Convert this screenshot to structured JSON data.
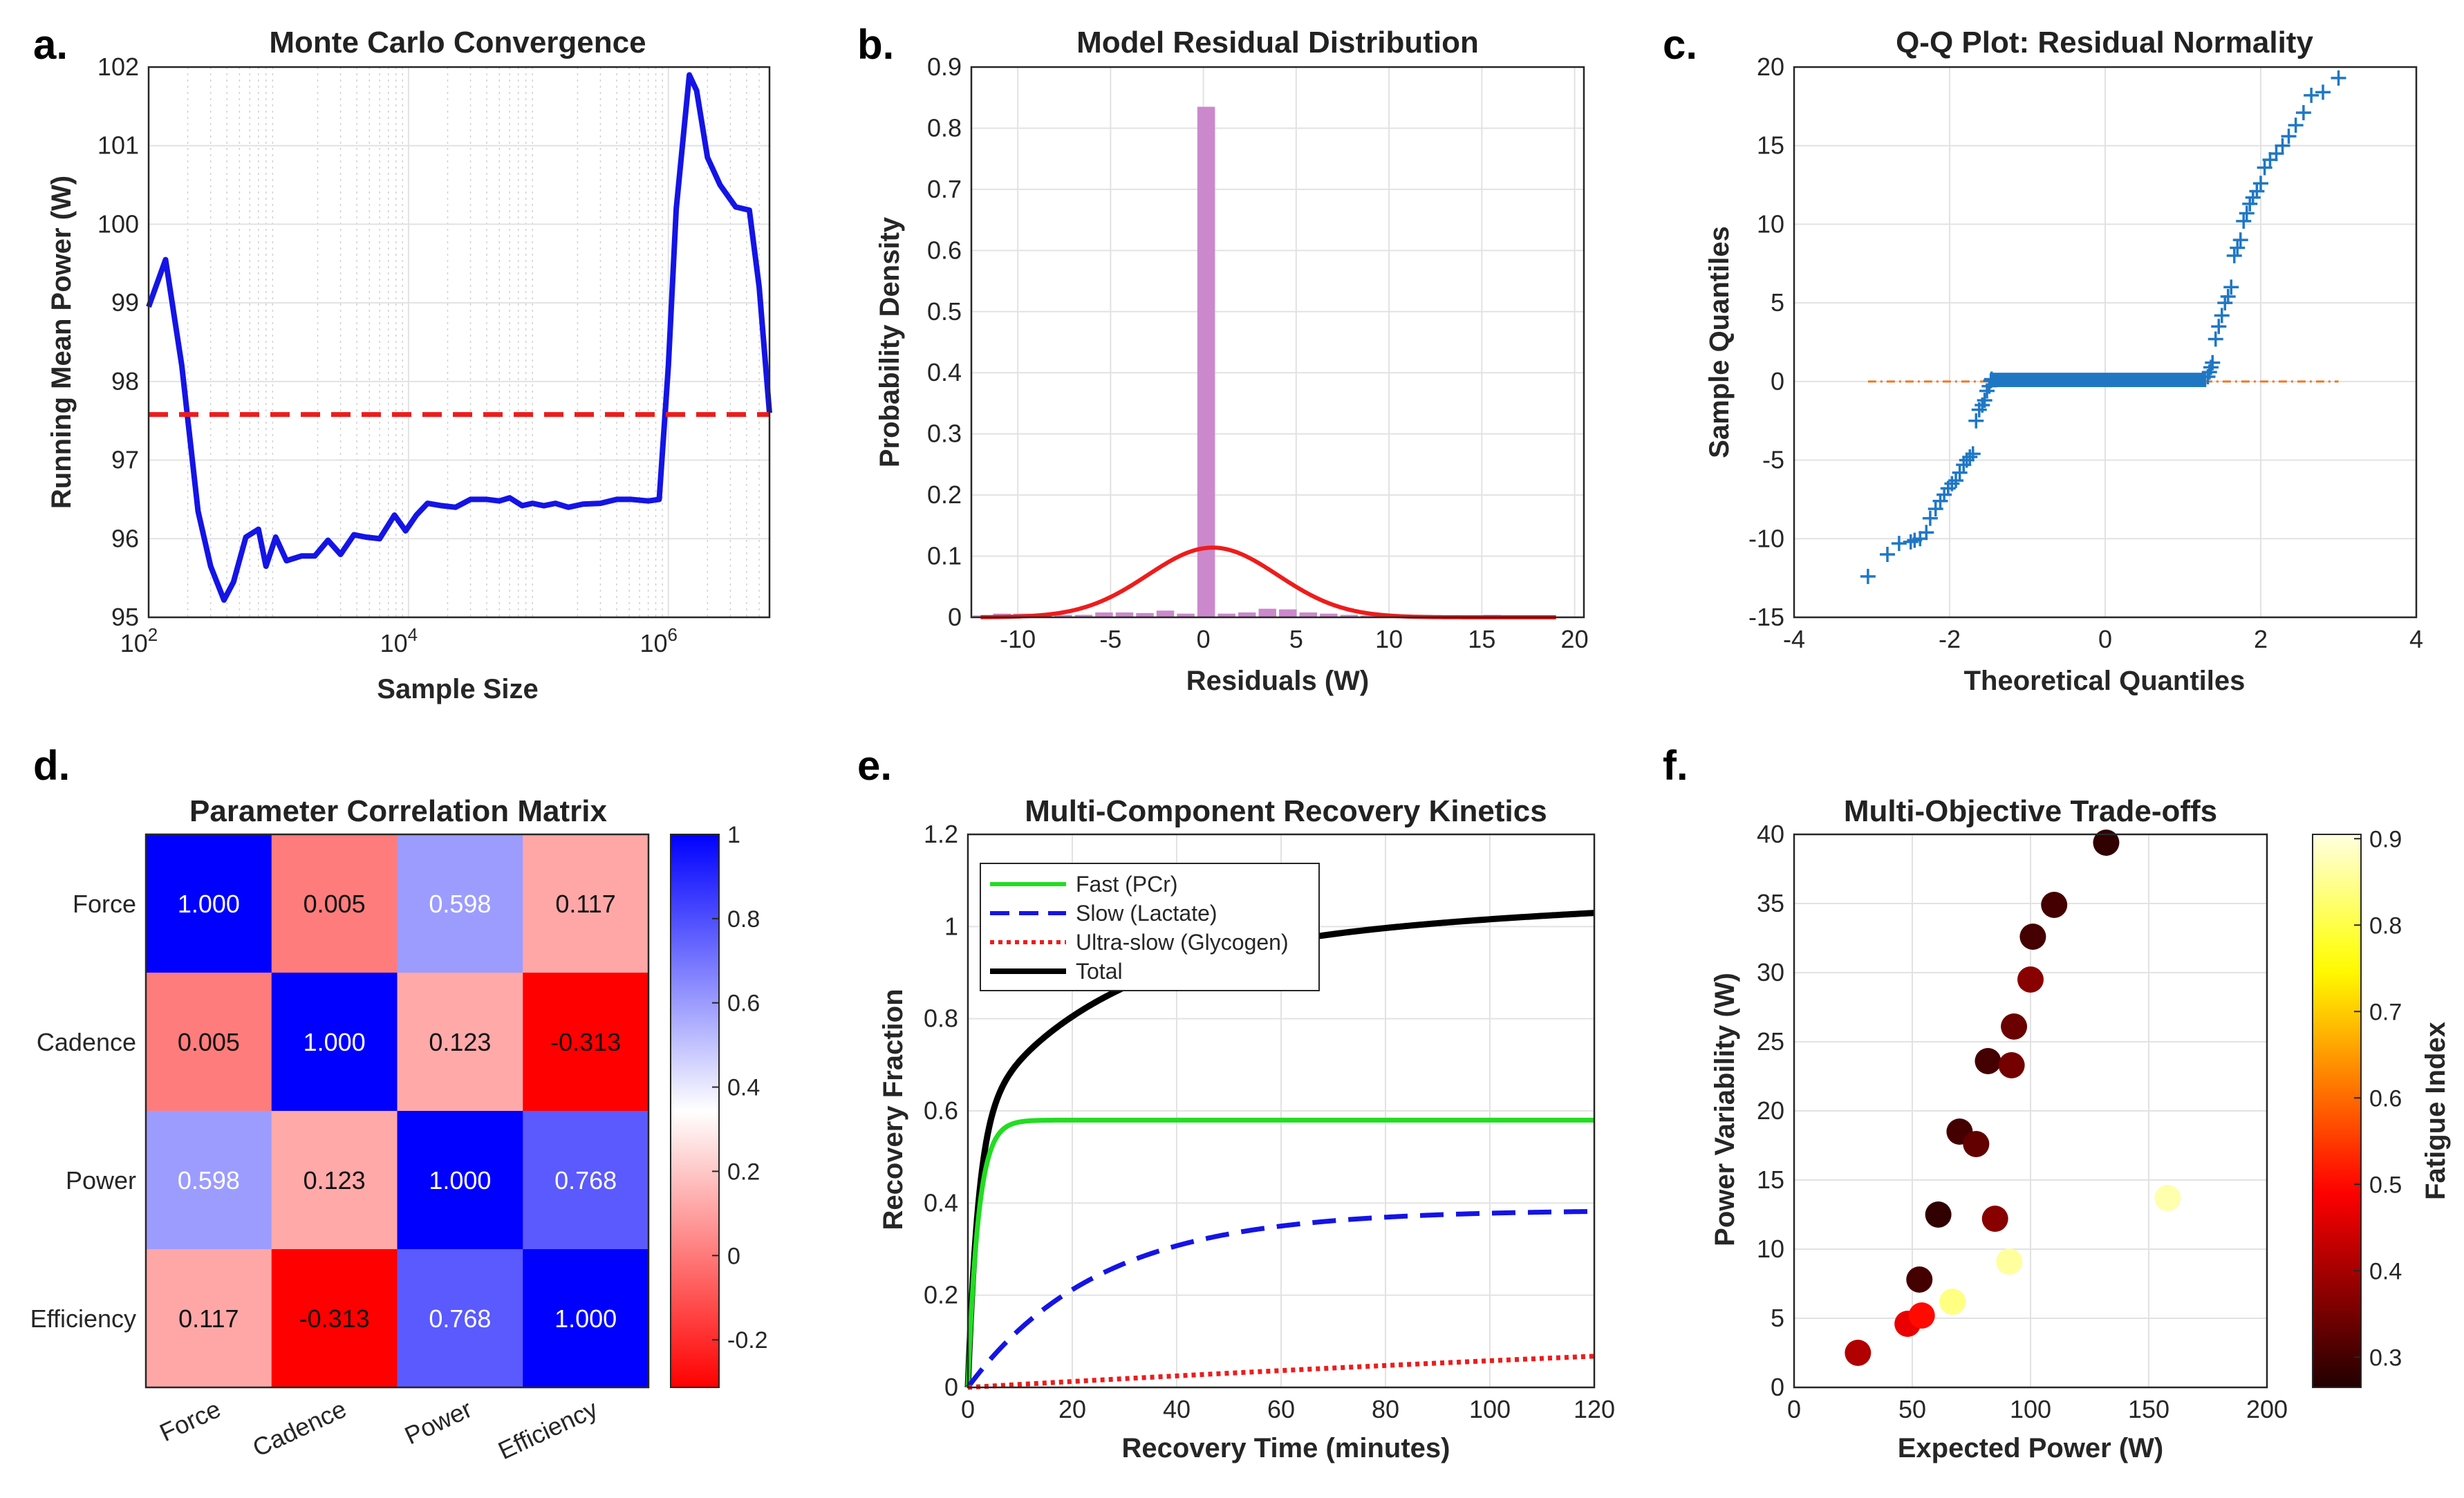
{
  "panel_labels": [
    "a.",
    "b.",
    "c.",
    "d.",
    "e.",
    "f."
  ],
  "chart_data": [
    {
      "id": "a",
      "type": "line",
      "title": "Monte Carlo Convergence",
      "xlabel": "Sample Size",
      "ylabel": "Running Mean Power (W)",
      "xscale": "log",
      "xlim": [
        100,
        6000000
      ],
      "ylim": [
        95,
        102
      ],
      "xticks": [
        {
          "value": 100,
          "base": "10",
          "exp": "2"
        },
        {
          "value": 10000,
          "base": "10",
          "exp": "4"
        },
        {
          "value": 1000000,
          "base": "10",
          "exp": "6"
        }
      ],
      "yticks": [
        95,
        96,
        97,
        98,
        99,
        100,
        101,
        102
      ],
      "series": [
        {
          "name": "Running mean",
          "color": "#1414e6",
          "x": [
            100,
            135,
            180,
            240,
            300,
            380,
            450,
            560,
            700,
            800,
            950,
            1150,
            1500,
            1900,
            2400,
            3000,
            3800,
            4700,
            6000,
            7800,
            9500,
            11500,
            14000,
            18000,
            23000,
            30000,
            40000,
            50000,
            60000,
            75000,
            90000,
            110000,
            135000,
            170000,
            220000,
            300000,
            400000,
            520000,
            700000,
            850000,
            1000000,
            1150000,
            1300000,
            1450000,
            1650000,
            2000000,
            2500000,
            3300000,
            4200000,
            5000000,
            6000000
          ],
          "y": [
            98.95,
            99.55,
            98.2,
            96.35,
            95.65,
            95.22,
            95.45,
            96.02,
            96.12,
            95.65,
            96.02,
            95.72,
            95.78,
            95.78,
            95.98,
            95.8,
            96.05,
            96.02,
            96.0,
            96.3,
            96.1,
            96.3,
            96.45,
            96.42,
            96.4,
            96.5,
            96.5,
            96.48,
            96.52,
            96.42,
            96.45,
            96.42,
            96.45,
            96.4,
            96.44,
            96.45,
            96.5,
            96.5,
            96.48,
            96.5,
            98.2,
            100.2,
            101.1,
            101.9,
            101.7,
            100.85,
            100.5,
            100.22,
            100.18,
            99.2,
            97.6
          ]
        }
      ],
      "reference_line": {
        "y": 97.58,
        "style": "dashed",
        "color": "#ee1c1c"
      },
      "grid": true
    },
    {
      "id": "b",
      "type": "histogram",
      "title": "Model Residual Distribution",
      "xlabel": "Residuals (W)",
      "ylabel": "Probability Density",
      "xlim": [
        -12.5,
        20.5
      ],
      "ylim": [
        0,
        0.9
      ],
      "xticks": [
        -10,
        -5,
        0,
        5,
        10,
        15,
        20
      ],
      "yticks": [
        0,
        0.1,
        0.2,
        0.3,
        0.4,
        0.5,
        0.6,
        0.7,
        0.8,
        0.9
      ],
      "bins": {
        "color": "#cc88cc",
        "edges": [
          -12.5,
          -11.4,
          -10.3,
          -9.2,
          -8.1,
          -7.0,
          -5.9,
          -4.8,
          -3.7,
          -2.6,
          -1.5,
          -0.4,
          0.7,
          1.8,
          2.9,
          4.0,
          5.1,
          6.2,
          7.3,
          8.4,
          9.5,
          10.6,
          11.7,
          12.8,
          13.9,
          15.0,
          16.1,
          17.2,
          18.3,
          19.4
        ],
        "density": [
          0.003,
          0.006,
          0.006,
          0.004,
          0.004,
          0.004,
          0.008,
          0.008,
          0.007,
          0.011,
          0.006,
          0.835,
          0.006,
          0.008,
          0.014,
          0.013,
          0.008,
          0.006,
          0.004,
          0.003,
          0.004,
          0.003,
          0.003,
          0.002,
          0.002,
          0.004,
          0.002,
          0.001,
          0.001
        ]
      },
      "fit": {
        "name": "Normal fit",
        "color": "#ee1c1c",
        "mean": 0.5,
        "std": 3.5,
        "x_range": [
          -12,
          19
        ]
      },
      "grid": true
    },
    {
      "id": "c",
      "type": "scatter",
      "title": "Q-Q Plot: Residual Normality",
      "xlabel": "Theoretical Quantiles",
      "ylabel": "Sample Quantiles",
      "xlim": [
        -4,
        4
      ],
      "ylim": [
        -15,
        20
      ],
      "xticks": [
        -4,
        -2,
        0,
        2,
        4
      ],
      "yticks": [
        -15,
        -10,
        -5,
        0,
        5,
        10,
        15,
        20
      ],
      "points": {
        "marker": "+",
        "color": "#1f77c4",
        "x": [
          -3.05,
          -2.8,
          -2.65,
          -2.5,
          -2.45,
          -2.38,
          -2.3,
          -2.25,
          -2.18,
          -2.12,
          -2.07,
          -2.02,
          -1.97,
          -1.92,
          -1.87,
          -1.82,
          -1.78,
          -1.74,
          -1.7,
          -1.66,
          -1.62,
          -1.58,
          -1.55,
          -1.52,
          -1.49,
          -1.47,
          -1.46,
          1.32,
          1.34,
          1.36,
          1.38,
          1.42,
          1.46,
          1.5,
          1.54,
          1.58,
          1.62,
          1.66,
          1.7,
          1.74,
          1.78,
          1.82,
          1.86,
          1.9,
          1.95,
          2.0,
          2.05,
          2.12,
          2.2,
          2.28,
          2.36,
          2.45,
          2.55,
          2.65,
          2.8,
          3.0
        ],
        "y": [
          -12.4,
          -11.0,
          -10.3,
          -10.2,
          -10.1,
          -10.0,
          -9.6,
          -8.7,
          -8.1,
          -7.6,
          -7.2,
          -6.8,
          -6.5,
          -6.3,
          -5.8,
          -5.3,
          -5.0,
          -4.8,
          -4.6,
          -2.5,
          -1.8,
          -1.5,
          -1.2,
          -0.6,
          -0.3,
          0.05,
          0.15,
          0.3,
          0.6,
          0.9,
          1.2,
          2.7,
          3.5,
          4.2,
          5.0,
          5.4,
          6.0,
          8.0,
          8.5,
          9.0,
          10.2,
          10.7,
          11.3,
          11.7,
          12.1,
          12.6,
          13.6,
          14.1,
          14.5,
          15.0,
          15.6,
          16.3,
          17.1,
          18.2,
          18.4,
          19.3
        ],
        "flat_segment": {
          "x_from": -1.45,
          "x_to": 1.3,
          "y_from": -0.05,
          "y_to": 0.25
        }
      },
      "reference_line": {
        "x": [
          -3.05,
          3.0
        ],
        "y": [
          0,
          0
        ],
        "style": "dash-dot",
        "color": "#ee7722"
      },
      "grid": true
    },
    {
      "id": "d",
      "type": "heatmap",
      "title": "Parameter Correlation Matrix",
      "rows": [
        "Force",
        "Cadence",
        "Power",
        "Efficiency"
      ],
      "cols": [
        "Force",
        "Cadence",
        "Power",
        "Efficiency"
      ],
      "values": [
        [
          1.0,
          0.005,
          0.598,
          0.117
        ],
        [
          0.005,
          1.0,
          0.123,
          -0.313
        ],
        [
          0.598,
          0.123,
          1.0,
          0.768
        ],
        [
          0.117,
          -0.313,
          0.768,
          1.0
        ]
      ],
      "labels": [
        [
          "1.000",
          "0.005",
          "0.598",
          "0.117"
        ],
        [
          "0.005",
          "1.000",
          "0.123",
          "-0.313"
        ],
        [
          "0.598",
          "0.123",
          "1.000",
          "0.768"
        ],
        [
          "0.117",
          "-0.313",
          "0.768",
          "1.000"
        ]
      ],
      "colorbar": {
        "range": [
          -0.313,
          1.0
        ],
        "ticks": [
          -0.2,
          0,
          0.2,
          0.4,
          0.6,
          0.8,
          1
        ],
        "tick_labels": [
          "-0.2",
          "0",
          "0.2",
          "0.4",
          "0.6",
          "0.8",
          "1"
        ],
        "colors": {
          "low": "#ff0000",
          "mid": "#ffffff",
          "high": "#0000ff"
        }
      }
    },
    {
      "id": "e",
      "type": "line",
      "title": "Multi-Component Recovery Kinetics",
      "xlabel": "Recovery Time (minutes)",
      "ylabel": "Recovery Fraction",
      "xlim": [
        0,
        120
      ],
      "ylim": [
        0,
        1.2
      ],
      "xticks": [
        0,
        20,
        40,
        60,
        80,
        100,
        120
      ],
      "yticks": [
        0,
        0.2,
        0.4,
        0.6,
        0.8,
        1,
        1.2
      ],
      "ytick_labels": [
        "0",
        "0.2",
        "0.4",
        "0.6",
        "0.8",
        "1",
        "1.2"
      ],
      "series": [
        {
          "name": "Fast (PCr)",
          "color": "#22dd22",
          "style": "solid",
          "amplitude": 0.58,
          "tau": 2.0
        },
        {
          "name": "Slow (Lactate)",
          "color": "#1414e6",
          "style": "dashed",
          "amplitude": 0.385,
          "tau": 25.0
        },
        {
          "name": "Ultra-slow (Glycogen)",
          "color": "#ee1c1c",
          "style": "dotted",
          "amplitude": 0.25,
          "tau": 380.0
        },
        {
          "name": "Total",
          "color": "#000000",
          "style": "solid",
          "sum_of": [
            "Fast (PCr)",
            "Slow (Lactate)",
            "Ultra-slow (Glycogen)"
          ]
        }
      ],
      "legend": "top-left",
      "grid": true
    },
    {
      "id": "f",
      "type": "scatter",
      "title": "Multi-Objective Trade-offs",
      "xlabel": "Expected Power (W)",
      "ylabel": "Power Variability (W)",
      "xlim": [
        0,
        200
      ],
      "ylim": [
        0,
        40
      ],
      "xticks": [
        0,
        50,
        100,
        150,
        200
      ],
      "yticks": [
        0,
        5,
        10,
        15,
        20,
        25,
        30,
        35,
        40
      ],
      "points": [
        {
          "x": 27,
          "y": 2.5,
          "c": 0.41
        },
        {
          "x": 48,
          "y": 4.6,
          "c": 0.47
        },
        {
          "x": 54,
          "y": 5.2,
          "c": 0.5
        },
        {
          "x": 53,
          "y": 7.8,
          "c": 0.3
        },
        {
          "x": 67,
          "y": 6.2,
          "c": 0.84
        },
        {
          "x": 61,
          "y": 12.5,
          "c": 0.28
        },
        {
          "x": 91,
          "y": 9.1,
          "c": 0.86
        },
        {
          "x": 85,
          "y": 12.2,
          "c": 0.37
        },
        {
          "x": 70,
          "y": 18.5,
          "c": 0.3
        },
        {
          "x": 77,
          "y": 17.6,
          "c": 0.33
        },
        {
          "x": 82,
          "y": 23.6,
          "c": 0.3
        },
        {
          "x": 92,
          "y": 23.3,
          "c": 0.35
        },
        {
          "x": 93,
          "y": 26.1,
          "c": 0.34
        },
        {
          "x": 100,
          "y": 29.5,
          "c": 0.37
        },
        {
          "x": 101,
          "y": 32.6,
          "c": 0.3
        },
        {
          "x": 110,
          "y": 34.9,
          "c": 0.3
        },
        {
          "x": 132,
          "y": 39.4,
          "c": 0.28
        },
        {
          "x": 158,
          "y": 13.7,
          "c": 0.87
        }
      ],
      "colorbar": {
        "label": "Fatigue Index",
        "range": [
          0.265,
          0.905
        ],
        "ticks": [
          0.3,
          0.4,
          0.5,
          0.6,
          0.7,
          0.8,
          0.9
        ],
        "tick_labels": [
          "0.3",
          "0.4",
          "0.5",
          "0.6",
          "0.7",
          "0.8",
          "0.9"
        ],
        "colormap": "hot"
      }
    }
  ]
}
